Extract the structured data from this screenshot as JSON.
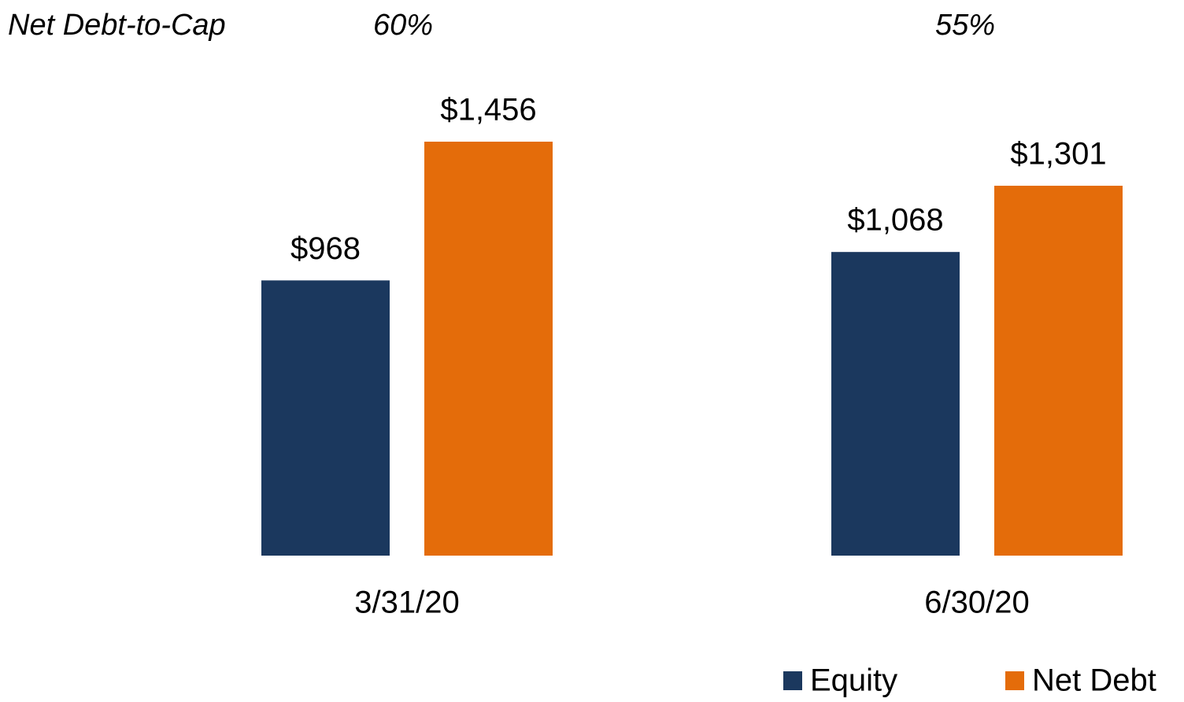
{
  "chart_data": {
    "type": "bar",
    "annotations": {
      "label": "Net Debt-to-Cap",
      "texts": [
        "60%",
        "55%"
      ]
    },
    "categories": [
      "3/31/20",
      "6/30/20"
    ],
    "series": [
      {
        "name": "Equity",
        "color": "#1b385e",
        "values": [
          968,
          1068
        ],
        "value_labels": [
          "$968",
          "$1,068"
        ]
      },
      {
        "name": "Net Debt",
        "color": "#e46c0a",
        "values": [
          1456,
          1301
        ],
        "value_labels": [
          "$1,456",
          "$1,301"
        ]
      }
    ],
    "ylim": [
      0,
      1600
    ],
    "legend": "bottom-right"
  }
}
